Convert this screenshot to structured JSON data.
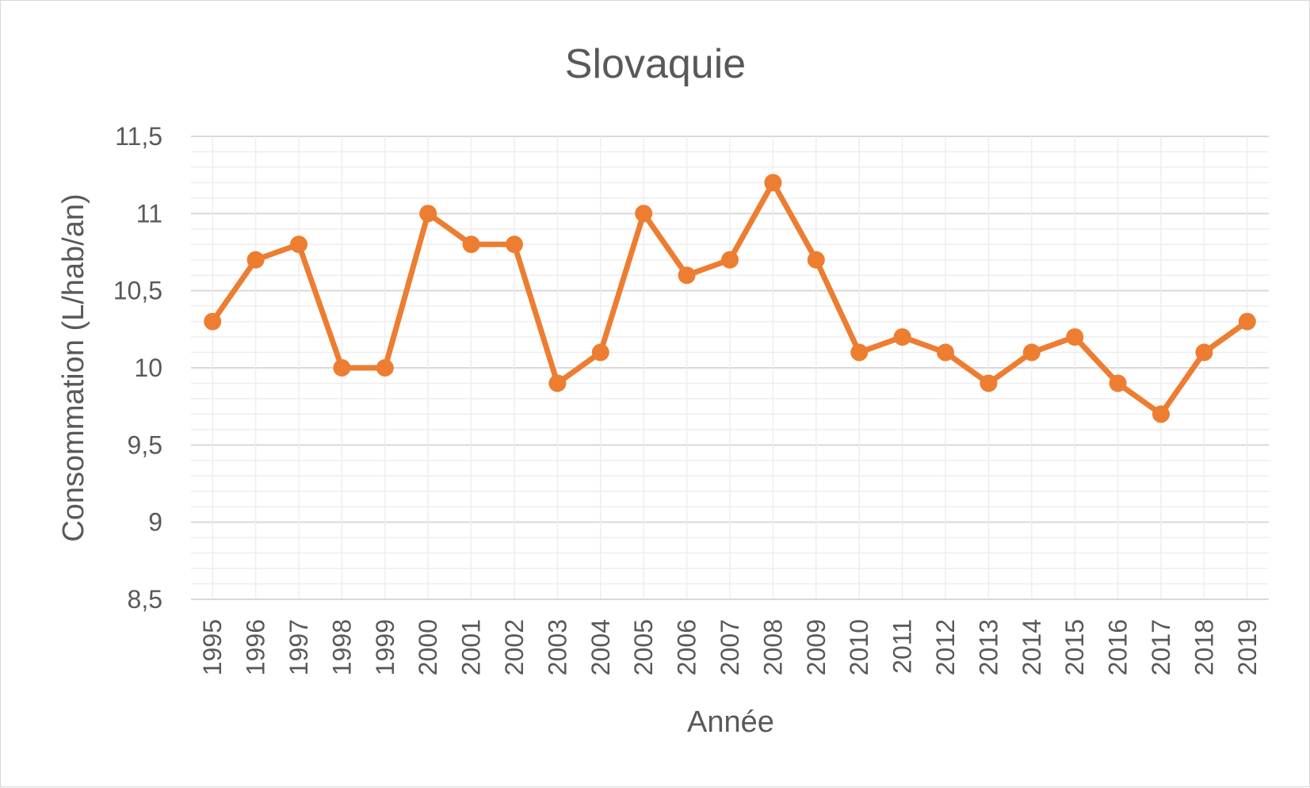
{
  "chart_data": {
    "type": "line",
    "title": "Slovaquie",
    "xlabel": "Année",
    "ylabel": "Consommation (L/hab/an)",
    "categories": [
      "1995",
      "1996",
      "1997",
      "1998",
      "1999",
      "2000",
      "2001",
      "2002",
      "2003",
      "2004",
      "2005",
      "2006",
      "2007",
      "2008",
      "2009",
      "2010",
      "2011",
      "2012",
      "2013",
      "2014",
      "2015",
      "2016",
      "2017",
      "2018",
      "2019"
    ],
    "series": [
      {
        "values": [
          10.3,
          10.7,
          10.8,
          10.0,
          10.0,
          11.0,
          10.8,
          10.8,
          9.9,
          10.1,
          11.0,
          10.6,
          10.7,
          11.2,
          10.7,
          10.1,
          10.2,
          10.1,
          9.9,
          10.1,
          10.2,
          9.9,
          9.7,
          10.1,
          10.3
        ],
        "color": "#ed7d31"
      }
    ],
    "ylim": [
      8.5,
      11.5
    ],
    "yticks": [
      "8,5",
      "9",
      "9,5",
      "10",
      "10,5",
      "11",
      "11,5"
    ],
    "ytick_values": [
      8.5,
      9,
      9.5,
      10,
      10.5,
      11,
      11.5
    ],
    "minor_step": 0.1,
    "grid": true,
    "legend": "none",
    "gridline_color": "#d9d9d9",
    "minor_gridline_color": "#eeeeee",
    "text_color": "#595959"
  }
}
